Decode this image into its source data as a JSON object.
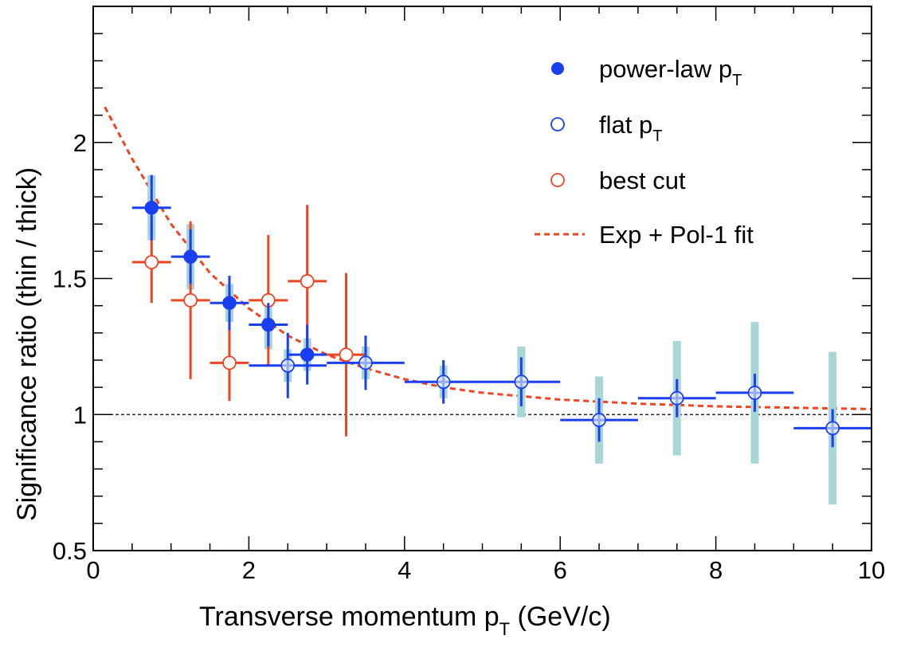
{
  "chart_data": {
    "type": "scatter",
    "title": "",
    "xlabel": {
      "main": "Transverse momentum p",
      "sub": "T",
      "suffix": " (GeV/c)"
    },
    "ylabel": "Significance ratio (thin / thick)",
    "xlim": [
      0,
      10
    ],
    "ylim": [
      0.5,
      2.5
    ],
    "xticks": [
      0,
      2,
      4,
      6,
      8,
      10
    ],
    "yticks": [
      0.5,
      1,
      1.5,
      2
    ],
    "xtick_labels": [
      "0",
      "2",
      "4",
      "6",
      "8",
      "10"
    ],
    "ytick_labels": [
      "0.5",
      "1",
      "1.5",
      "2"
    ],
    "grid": false,
    "reference_line_y": 1.0,
    "legend_position": "top-right",
    "colors": {
      "blue": "#1a3ff0",
      "red": "#ee4422",
      "syst": "#a8d5d5",
      "axis": "#000000"
    },
    "legend": [
      {
        "label": "power-law p",
        "sub": "T",
        "marker": "filled-circle",
        "color": "#1a3ff0"
      },
      {
        "label": "flat p",
        "sub": "T",
        "marker": "open-circle",
        "color": "#1a3ff0"
      },
      {
        "label": "best cut",
        "sub": "",
        "marker": "open-circle",
        "color": "#ee4422"
      },
      {
        "label": "Exp + Pol-1 fit",
        "sub": "",
        "marker": "dashed-line",
        "color": "#ee4422"
      }
    ],
    "series": [
      {
        "name": "power-law p_T",
        "marker": "filled-circle",
        "color": "#1a3ff0",
        "points": [
          {
            "x": 0.75,
            "y": 1.76,
            "xerr": 0.25,
            "stat": 0.12,
            "syst": 0.12
          },
          {
            "x": 1.25,
            "y": 1.58,
            "xerr": 0.25,
            "stat": 0.1,
            "syst": 0.12
          },
          {
            "x": 1.75,
            "y": 1.41,
            "xerr": 0.25,
            "stat": 0.1,
            "syst": 0.07
          },
          {
            "x": 2.25,
            "y": 1.33,
            "xerr": 0.25,
            "stat": 0.08,
            "syst": 0.09
          },
          {
            "x": 2.75,
            "y": 1.22,
            "xerr": 0.25,
            "stat": 0.11,
            "syst": 0.06
          }
        ]
      },
      {
        "name": "flat p_T",
        "marker": "open-circle",
        "color": "#1a3ff0",
        "points": [
          {
            "x": 2.5,
            "y": 1.18,
            "xerr": 0.5,
            "stat": 0.12,
            "syst": 0.06
          },
          {
            "x": 3.5,
            "y": 1.19,
            "xerr": 0.5,
            "stat": 0.1,
            "syst": 0.06
          },
          {
            "x": 4.5,
            "y": 1.12,
            "xerr": 0.5,
            "stat": 0.08,
            "syst": 0.06
          },
          {
            "x": 5.5,
            "y": 1.12,
            "xerr": 0.5,
            "stat": 0.09,
            "syst": 0.13
          },
          {
            "x": 6.5,
            "y": 0.98,
            "xerr": 0.5,
            "stat": 0.08,
            "syst": 0.16
          },
          {
            "x": 7.5,
            "y": 1.06,
            "xerr": 0.5,
            "stat": 0.07,
            "syst": 0.21
          },
          {
            "x": 8.5,
            "y": 1.08,
            "xerr": 0.5,
            "stat": 0.07,
            "syst": 0.26
          },
          {
            "x": 9.5,
            "y": 0.95,
            "xerr": 0.5,
            "stat": 0.07,
            "syst": 0.28
          }
        ]
      },
      {
        "name": "best cut",
        "marker": "open-circle",
        "color": "#ee4422",
        "points": [
          {
            "x": 0.75,
            "y": 1.56,
            "xerr": 0.25,
            "stat": 0.15,
            "syst": 0
          },
          {
            "x": 1.25,
            "y": 1.42,
            "xerr": 0.25,
            "stat": 0.29,
            "syst": 0
          },
          {
            "x": 1.75,
            "y": 1.19,
            "xerr": 0.25,
            "stat": 0.14,
            "syst": 0
          },
          {
            "x": 2.25,
            "y": 1.42,
            "xerr": 0.25,
            "stat": 0.24,
            "syst": 0
          },
          {
            "x": 2.75,
            "y": 1.49,
            "xerr": 0.25,
            "stat": 0.28,
            "syst": 0
          },
          {
            "x": 3.25,
            "y": 1.22,
            "xerr": 0.25,
            "stat": 0.3,
            "syst": 0
          }
        ]
      }
    ],
    "fit": {
      "name": "Exp + Pol-1 fit",
      "color": "#ee4422",
      "x": [
        0.15,
        0.5,
        1.0,
        1.5,
        2.0,
        2.5,
        3.0,
        3.5,
        4.0,
        4.5,
        5.0,
        6.0,
        7.0,
        8.0,
        9.0,
        10.0
      ],
      "y": [
        2.13,
        1.94,
        1.7,
        1.52,
        1.39,
        1.29,
        1.22,
        1.17,
        1.13,
        1.1,
        1.08,
        1.055,
        1.04,
        1.03,
        1.025,
        1.02
      ]
    }
  }
}
